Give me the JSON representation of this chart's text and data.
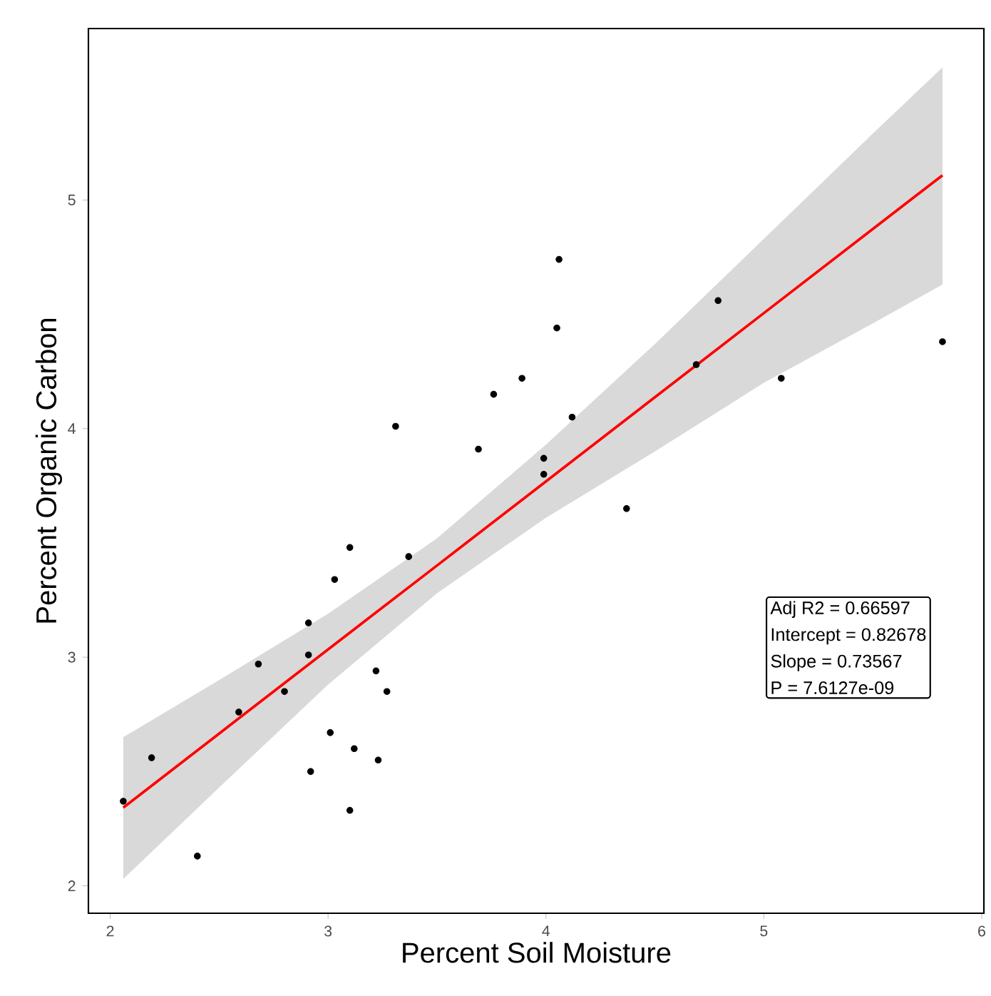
{
  "chart_data": {
    "type": "scatter",
    "xlabel": "Percent Soil Moisture",
    "ylabel": "Percent Organic Carbon",
    "xlim": [
      1.9,
      6.01
    ],
    "ylim": [
      1.88,
      5.75
    ],
    "xticks": [
      2,
      3,
      4,
      5,
      6
    ],
    "yticks": [
      2,
      3,
      4,
      5
    ],
    "series": [
      {
        "type": "line",
        "color": "#ff0000",
        "marker": "none",
        "x": [
          2.06,
          2.5,
          3.0,
          3.5,
          4.0,
          4.5,
          5.0,
          5.5,
          5.82
        ],
        "values": [
          2.342,
          2.666,
          3.034,
          3.401,
          3.769,
          4.137,
          4.505,
          4.873,
          5.108
        ],
        "lower": [
          2.03,
          2.43,
          2.88,
          3.28,
          3.61,
          3.9,
          4.2,
          4.46,
          4.63
        ],
        "upper": [
          2.65,
          2.9,
          3.19,
          3.52,
          3.93,
          4.37,
          4.83,
          5.29,
          5.58
        ]
      },
      {
        "type": "scatter",
        "color": "#000000",
        "marker": "circle",
        "x": [
          2.06,
          2.19,
          2.4,
          2.59,
          2.68,
          2.8,
          2.91,
          2.91,
          2.92,
          3.01,
          3.1,
          3.03,
          3.12,
          3.1,
          3.22,
          3.27,
          3.23,
          3.37,
          4.06,
          4.05,
          3.89,
          3.76,
          3.31,
          3.69,
          4.12,
          3.99,
          3.99,
          4.37,
          4.79,
          4.69,
          5.08,
          5.82
        ],
        "values": [
          2.37,
          2.56,
          2.13,
          2.76,
          2.97,
          2.85,
          3.15,
          3.01,
          2.5,
          2.67,
          3.48,
          3.34,
          2.6,
          2.33,
          2.94,
          2.85,
          2.55,
          3.44,
          4.74,
          4.44,
          4.22,
          4.15,
          4.01,
          3.91,
          4.05,
          3.87,
          3.8,
          3.65,
          4.56,
          4.28,
          4.22,
          4.38
        ]
      }
    ],
    "annotations": [
      "Adj R2 =  0.66597",
      "Intercept = 0.82678",
      "Slope = 0.73567",
      "P = 7.6127e-09"
    ]
  }
}
